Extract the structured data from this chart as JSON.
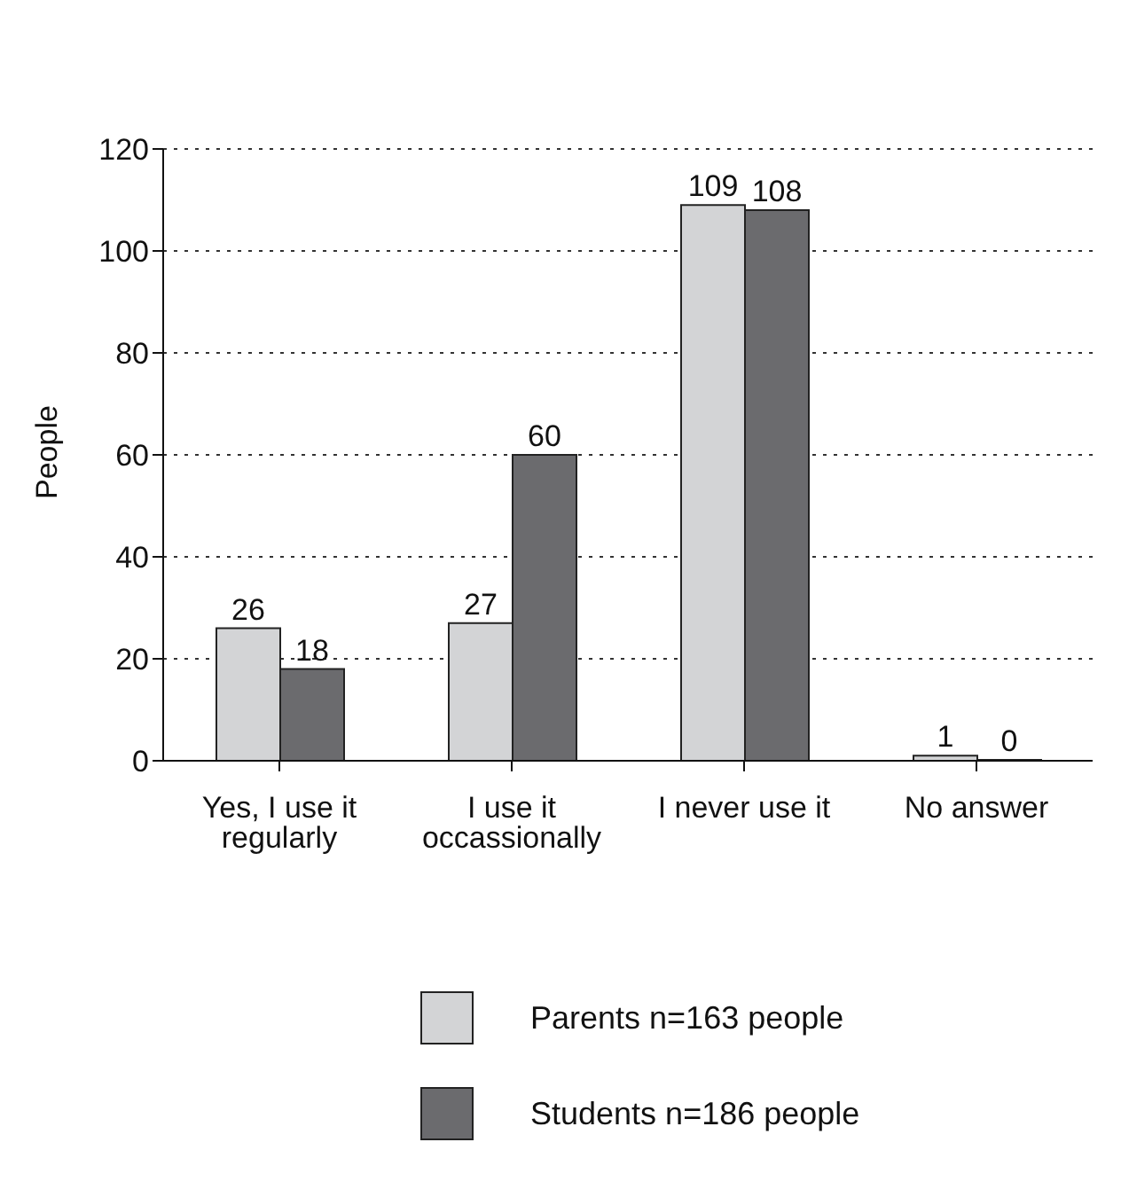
{
  "chart_data": {
    "type": "bar",
    "ylabel": "People",
    "categories": [
      "Yes, I use it regularly",
      "I use it occassionally",
      "I never use it",
      "No answer"
    ],
    "series": [
      {
        "name": "Parents n=163 people",
        "color": "#d3d4d6",
        "values": [
          26,
          27,
          109,
          1
        ]
      },
      {
        "name": "Students n=186 people",
        "color": "#6b6b6e",
        "values": [
          18,
          60,
          108,
          0
        ]
      }
    ],
    "ylim": [
      0,
      120
    ],
    "yticks": [
      0,
      20,
      40,
      60,
      80,
      100,
      120
    ],
    "grid": "y",
    "data_labels": true,
    "legend": "bottom"
  }
}
